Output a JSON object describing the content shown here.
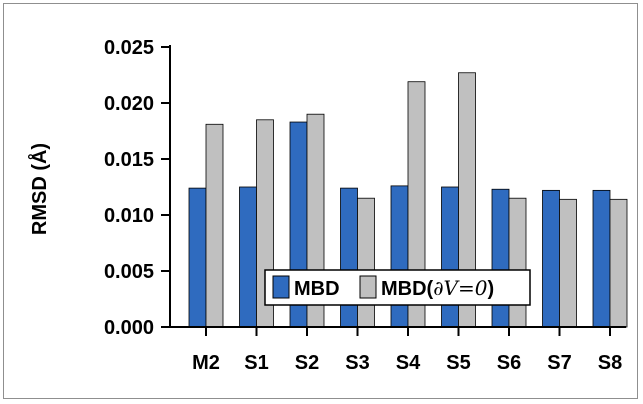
{
  "chart_data": {
    "type": "bar",
    "title": "",
    "xlabel": "",
    "ylabel": "RMSD (Å)",
    "categories": [
      "M2",
      "S1",
      "S2",
      "S3",
      "S4",
      "S5",
      "S6",
      "S7",
      "S8"
    ],
    "series": [
      {
        "name": "MBD",
        "color": "#2f6bbf",
        "values": [
          0.0124,
          0.0125,
          0.0183,
          0.0124,
          0.0126,
          0.0125,
          0.0123,
          0.0122,
          0.0122
        ]
      },
      {
        "name": "MBD(∂V=0)",
        "color": "#c0c0c0",
        "values": [
          0.0181,
          0.0185,
          0.019,
          0.0115,
          0.0219,
          0.0227,
          0.0115,
          0.0114,
          0.0114
        ]
      }
    ],
    "ylim": [
      0,
      0.025
    ],
    "yticks": [
      "0.000",
      "0.005",
      "0.010",
      "0.015",
      "0.020",
      "0.025"
    ],
    "grid": false,
    "legend_position": "lower-center",
    "legend": {
      "items": [
        {
          "label_main": "MBD",
          "label_math": ""
        },
        {
          "label_main": "MBD(",
          "label_math": "∂V=0",
          "label_tail": ")"
        }
      ]
    }
  }
}
